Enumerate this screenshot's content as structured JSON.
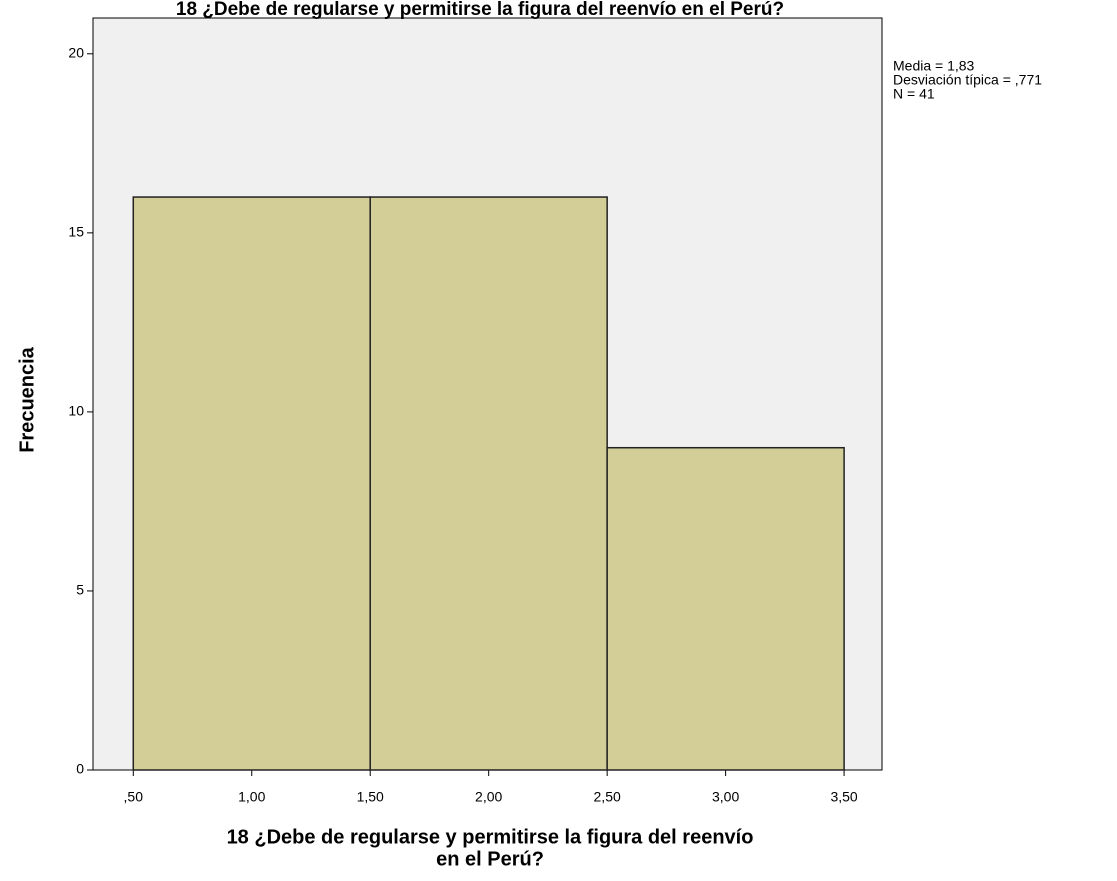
{
  "chart_data": {
    "type": "histogram",
    "title": "18 ¿Debe de regularse y permitirse la figura del reenvío en el Perú?",
    "x_label": [
      "18 ¿Debe de regularse y permitirse la figura del reenvío",
      "en el Perú?"
    ],
    "y_label": "Frecuencia",
    "bins": [
      0.5,
      1.5,
      2.5,
      3.5
    ],
    "values": [
      16,
      16,
      9
    ],
    "color": "#d3ce97",
    "background": "#f0f0f0",
    "xlim": [
      0.33,
      3.66
    ],
    "ylim": [
      0,
      21
    ],
    "xticks": [
      {
        "value": 0.5,
        "label": ",50"
      },
      {
        "value": 1.0,
        "label": "1,00"
      },
      {
        "value": 1.5,
        "label": "1,50"
      },
      {
        "value": 2.0,
        "label": "2,00"
      },
      {
        "value": 2.5,
        "label": "2,50"
      },
      {
        "value": 3.0,
        "label": "3,00"
      },
      {
        "value": 3.5,
        "label": "3,50"
      }
    ],
    "yticks": [
      0,
      5,
      10,
      15,
      20
    ],
    "annotations": [
      "Media = 1,83",
      "Desviación típica = ,771",
      "N = 41"
    ]
  }
}
